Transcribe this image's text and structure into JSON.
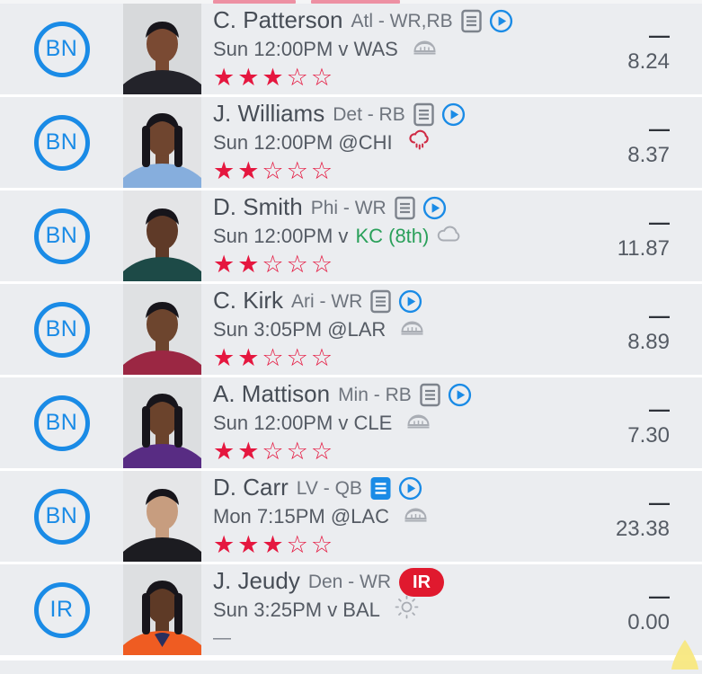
{
  "colors": {
    "accent": "#1a8be6",
    "star_red": "#e5173f",
    "green": "#2aa05a",
    "ir_red": "#e0192e",
    "rain_red": "#cf2a44",
    "muted_icon": "#a9adb4",
    "note_gray": "#7d838c",
    "corner_yellow": "#f8e87f"
  },
  "rows": [
    {
      "slot": "BN",
      "name": "C. Patterson",
      "team_pos": "Atl - WR,RB",
      "note": "outline",
      "video": true,
      "game_prefix": "Sun 12:00PM v WAS",
      "game_highlight": "",
      "weather": "stadium",
      "stars": 3,
      "rating_placeholder": null,
      "stat_dash": "—",
      "points": "8.24",
      "status_label": null,
      "photo": {
        "bg": "#d7d9db",
        "skin": "#7a4a33",
        "jersey": "#23232a",
        "hair": "short"
      }
    },
    {
      "slot": "BN",
      "name": "J. Williams",
      "team_pos": "Det - RB",
      "note": "outline",
      "video": true,
      "game_prefix": "Sun 12:00PM @CHI",
      "game_highlight": "",
      "weather": "rain",
      "stars": 2,
      "rating_placeholder": null,
      "stat_dash": "—",
      "points": "8.37",
      "status_label": null,
      "photo": {
        "bg": "#e2e3e5",
        "skin": "#6f452f",
        "jersey": "#86aedd",
        "hair": "dreads"
      }
    },
    {
      "slot": "BN",
      "name": "D. Smith",
      "team_pos": "Phi - WR",
      "note": "outline",
      "video": true,
      "game_prefix": "Sun 12:00PM v ",
      "game_highlight": "KC (8th)",
      "weather": "cloud",
      "stars": 2,
      "rating_placeholder": null,
      "stat_dash": "—",
      "points": "11.87",
      "status_label": null,
      "photo": {
        "bg": "#e4e5e7",
        "skin": "#5f3a28",
        "jersey": "#1d4a47",
        "hair": "short"
      }
    },
    {
      "slot": "BN",
      "name": "C. Kirk",
      "team_pos": "Ari - WR",
      "note": "outline",
      "video": true,
      "game_prefix": "Sun 3:05PM @LAR",
      "game_highlight": "",
      "weather": "stadium",
      "stars": 2,
      "rating_placeholder": null,
      "stat_dash": "—",
      "points": "8.89",
      "status_label": null,
      "photo": {
        "bg": "#dfe1e3",
        "skin": "#6d452e",
        "jersey": "#9b2743",
        "hair": "short"
      }
    },
    {
      "slot": "BN",
      "name": "A. Mattison",
      "team_pos": "Min - RB",
      "note": "outline",
      "video": true,
      "game_prefix": "Sun 12:00PM v CLE",
      "game_highlight": "",
      "weather": "stadium",
      "stars": 2,
      "rating_placeholder": null,
      "stat_dash": "—",
      "points": "7.30",
      "status_label": null,
      "photo": {
        "bg": "#dcdee0",
        "skin": "#6b432c",
        "jersey": "#582c83",
        "hair": "dreads"
      }
    },
    {
      "slot": "BN",
      "name": "D. Carr",
      "team_pos": "LV - QB",
      "note": "filled",
      "video": true,
      "game_prefix": "Mon 7:15PM @LAC",
      "game_highlight": "",
      "weather": "stadium",
      "stars": 3,
      "rating_placeholder": null,
      "stat_dash": "—",
      "points": "23.38",
      "status_label": null,
      "photo": {
        "bg": "#e5e6e8",
        "skin": "#c79d7f",
        "jersey": "#1c1c21",
        "hair": "short"
      }
    },
    {
      "slot": "IR",
      "name": "J. Jeudy",
      "team_pos": "Den - WR",
      "note": "none",
      "video": false,
      "game_prefix": "Sun 3:25PM v BAL",
      "game_highlight": "",
      "weather": "sun",
      "stars": null,
      "rating_placeholder": "—",
      "stat_dash": "—",
      "points": "0.00",
      "status_label": "IR",
      "photo": {
        "bg": "#dddfe1",
        "skin": "#5e3a26",
        "jersey": "#ef5c22",
        "hair": "dreads"
      }
    }
  ]
}
